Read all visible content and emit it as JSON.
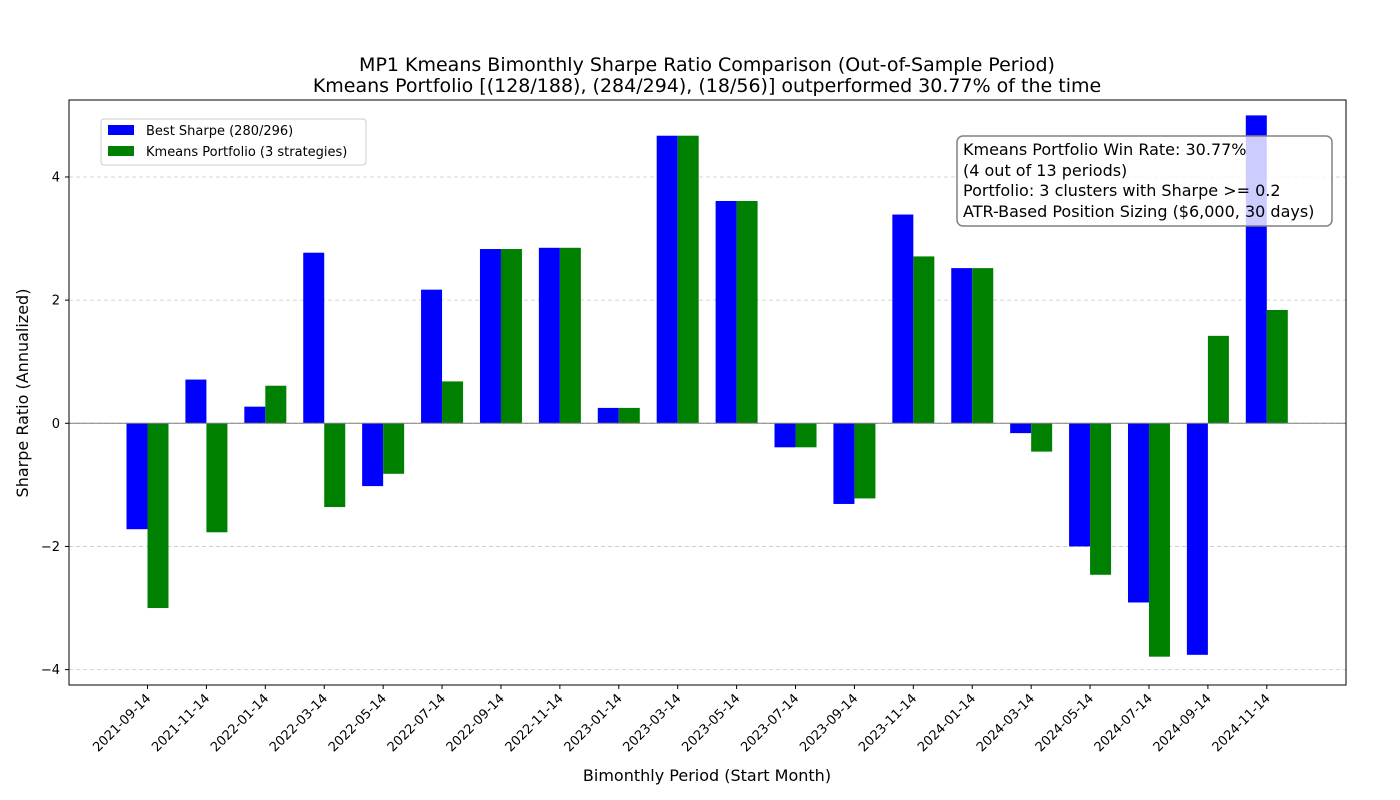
{
  "chart_data": {
    "type": "bar",
    "title": "MP1 Kmeans Bimonthly Sharpe Ratio Comparison (Out-of-Sample Period)",
    "subtitle": "Kmeans Portfolio [(128/188), (284/294), (18/56)] outperformed 30.77% of the time",
    "xlabel": "Bimonthly Period (Start Month)",
    "ylabel": "Sharpe Ratio (Annualized)",
    "ylim": [
      -4.25,
      5.25
    ],
    "yticks": [
      -4,
      -2,
      0,
      2,
      4
    ],
    "ytick_labels": [
      "−4",
      "−2",
      "0",
      "2",
      "4"
    ],
    "grid": "y-dashed",
    "legend_position": "top-left",
    "categories": [
      "2021-09-14",
      "2021-11-14",
      "2022-01-14",
      "2022-03-14",
      "2022-05-14",
      "2022-07-14",
      "2022-09-14",
      "2022-11-14",
      "2023-01-14",
      "2023-03-14",
      "2023-05-14",
      "2023-07-14",
      "2023-09-14",
      "2023-11-14",
      "2024-01-14",
      "2024-03-14",
      "2024-05-14",
      "2024-07-14",
      "2024-09-14",
      "2024-11-14"
    ],
    "series": [
      {
        "name": "Best Sharpe (280/296)",
        "color": "#0000ff",
        "values": [
          -1.72,
          0.71,
          0.27,
          2.77,
          -1.02,
          2.17,
          2.83,
          2.85,
          0.25,
          4.67,
          3.61,
          -0.39,
          -1.31,
          3.39,
          2.52,
          -0.16,
          -2.0,
          -2.91,
          -3.76,
          5.0
        ]
      },
      {
        "name": "Kmeans Portfolio (3 strategies)",
        "color": "#008000",
        "values": [
          -3.0,
          -1.77,
          0.61,
          -1.36,
          -0.82,
          0.68,
          2.83,
          2.85,
          0.25,
          4.67,
          3.61,
          -0.39,
          -1.22,
          2.71,
          2.52,
          -0.46,
          -2.46,
          -3.79,
          1.42,
          1.84
        ]
      }
    ],
    "annotation": [
      "Kmeans Portfolio Win Rate: 30.77%",
      "(4 out of 13 periods)",
      "Portfolio: 3 clusters with Sharpe >= 0.2",
      "ATR-Based Position Sizing ($6,000, 30 days)"
    ]
  }
}
